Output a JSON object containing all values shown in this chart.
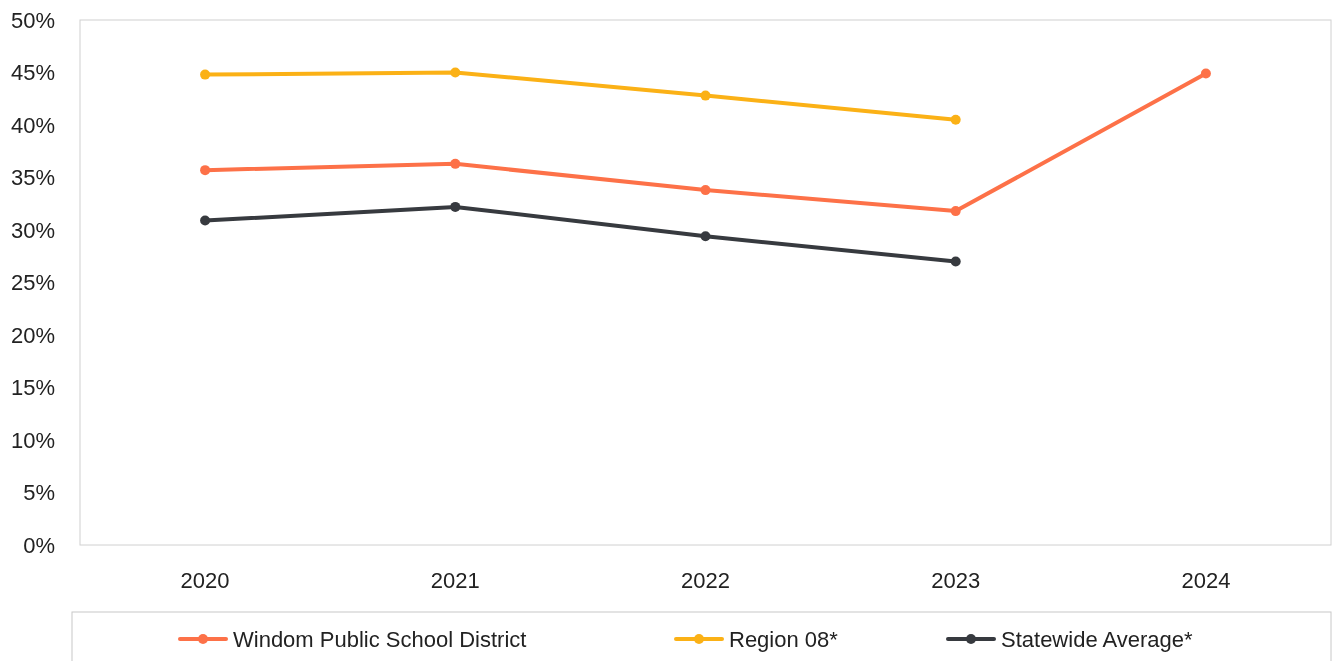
{
  "chart_data": {
    "type": "line",
    "categories": [
      "2020",
      "2021",
      "2022",
      "2023",
      "2024"
    ],
    "series": [
      {
        "name": "Windom Public School District",
        "color": "#fd7148",
        "values": [
          35.7,
          36.3,
          33.8,
          31.8,
          44.9
        ]
      },
      {
        "name": "Region 08*",
        "color": "#fbb116",
        "values": [
          44.8,
          45.0,
          42.8,
          40.5,
          null
        ]
      },
      {
        "name": "Statewide Average*",
        "color": "#373a3f",
        "values": [
          30.9,
          32.2,
          29.4,
          27.0,
          null
        ]
      }
    ],
    "ylim": [
      0,
      50
    ],
    "yticks": [
      {
        "value": 0,
        "label": "0%"
      },
      {
        "value": 5,
        "label": "5%"
      },
      {
        "value": 10,
        "label": "10%"
      },
      {
        "value": 15,
        "label": "15%"
      },
      {
        "value": 20,
        "label": "20%"
      },
      {
        "value": 25,
        "label": "25%"
      },
      {
        "value": 30,
        "label": "30%"
      },
      {
        "value": 35,
        "label": "35%"
      },
      {
        "value": 40,
        "label": "40%"
      },
      {
        "value": 45,
        "label": "45%"
      },
      {
        "value": 50,
        "label": "50%"
      }
    ],
    "grid": false,
    "legend": "bottom",
    "marker": "circle",
    "line_style": "solid"
  }
}
